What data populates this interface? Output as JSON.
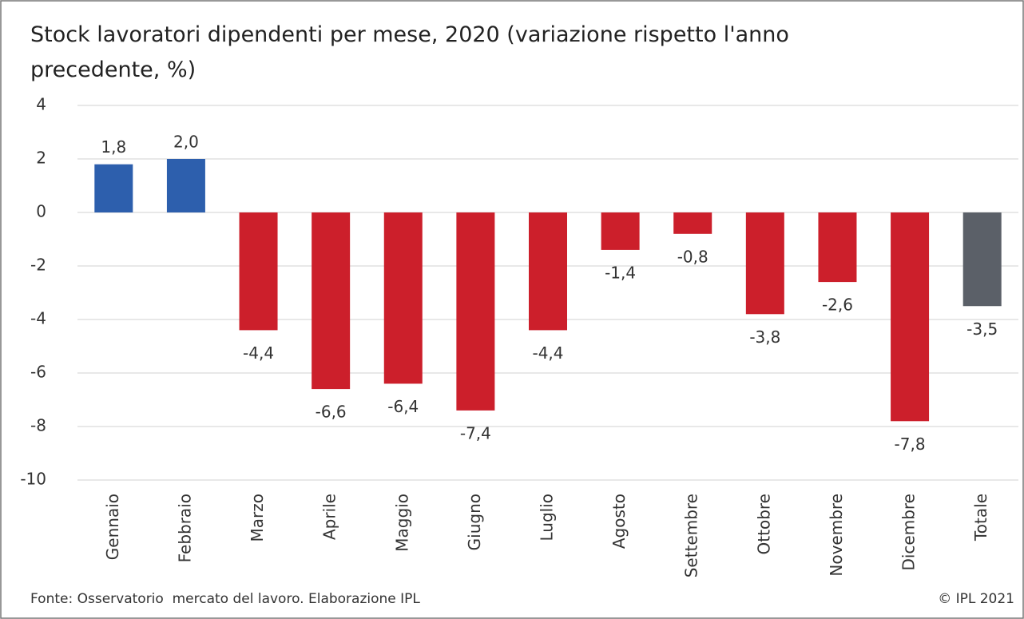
{
  "chart_data": {
    "type": "bar",
    "title": "Stock lavoratori dipendenti per mese, 2020 (variazione rispetto l'anno precedente, %)",
    "categories": [
      "Gennaio",
      "Febbraio",
      "Marzo",
      "Aprile",
      "Maggio",
      "Giugno",
      "Luglio",
      "Agosto",
      "Settembre",
      "Ottobre",
      "Novembre",
      "Dicembre",
      "Totale"
    ],
    "values": [
      1.8,
      2.0,
      -4.4,
      -6.6,
      -6.4,
      -7.4,
      -4.4,
      -1.4,
      -0.8,
      -3.8,
      -2.6,
      -7.8,
      -3.5
    ],
    "value_labels": [
      "1,8",
      "2,0",
      "-4,4",
      "-6,6",
      "-6,4",
      "-7,4",
      "-4,4",
      "-1,4",
      "-0,8",
      "-3,8",
      "-2,6",
      "-7,8",
      "-3,5"
    ],
    "colors": [
      "#2d5fad",
      "#2d5fad",
      "#cc1f2b",
      "#cc1f2b",
      "#cc1f2b",
      "#cc1f2b",
      "#cc1f2b",
      "#cc1f2b",
      "#cc1f2b",
      "#cc1f2b",
      "#cc1f2b",
      "#cc1f2b",
      "#5b6068"
    ],
    "ylim": [
      -10,
      4
    ],
    "yticks": [
      -10,
      -8,
      -6,
      -4,
      -2,
      0,
      2,
      4
    ],
    "grid": true,
    "source": "Fonte: Osservatorio  mercato del lavoro. Elaborazione IPL",
    "credit": "© IPL 2021"
  }
}
